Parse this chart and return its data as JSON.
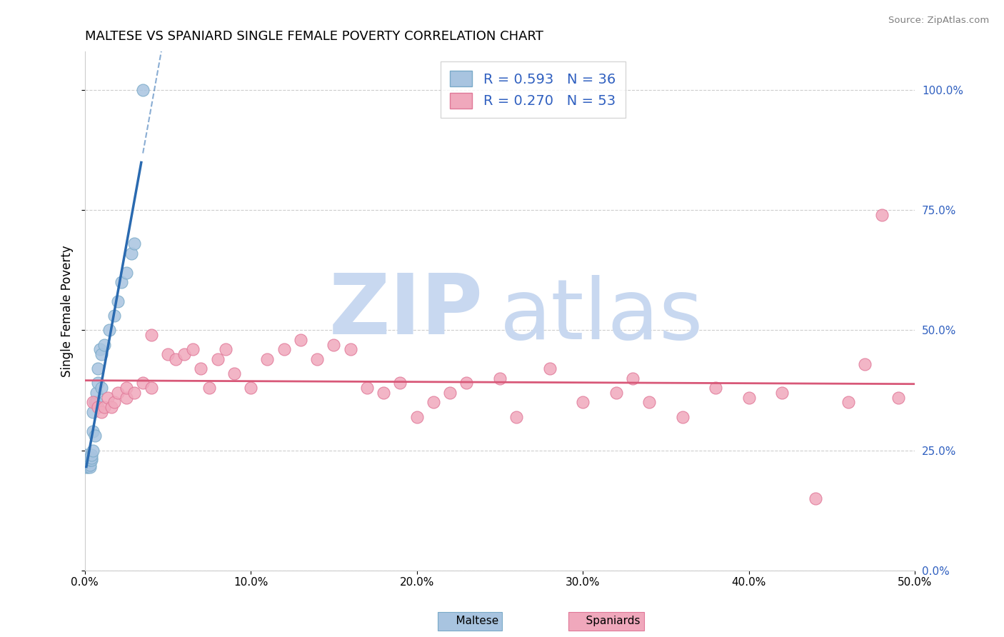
{
  "title": "MALTESE VS SPANIARD SINGLE FEMALE POVERTY CORRELATION CHART",
  "source": "Source: ZipAtlas.com",
  "ylabel": "Single Female Poverty",
  "xlim": [
    0.0,
    0.5
  ],
  "ylim": [
    0.0,
    1.08
  ],
  "xticks": [
    0.0,
    0.1,
    0.2,
    0.3,
    0.4,
    0.5
  ],
  "xticklabels": [
    "0.0%",
    "10.0%",
    "20.0%",
    "30.0%",
    "40.0%",
    "50.0%"
  ],
  "yticks": [
    0.0,
    0.25,
    0.5,
    0.75,
    1.0
  ],
  "yticklabels_right": [
    "0.0%",
    "25.0%",
    "50.0%",
    "75.0%",
    "100.0%"
  ],
  "maltese_color": "#a8c4e0",
  "maltese_edge": "#7aaac8",
  "spaniard_color": "#f0a8bc",
  "spaniard_edge": "#e07898",
  "blue_line_color": "#2a6ab0",
  "pink_line_color": "#d85878",
  "grid_color": "#c8c8c8",
  "watermark_zip": "ZIP",
  "watermark_atlas": "atlas",
  "watermark_color": "#c8d8f0",
  "legend_label1": "R = 0.593   N = 36",
  "legend_label2": "R = 0.270   N = 53",
  "legend_text_color": "#3060c0",
  "title_fontsize": 13,
  "maltese_x": [
    0.001,
    0.001,
    0.001,
    0.001,
    0.002,
    0.002,
    0.002,
    0.002,
    0.003,
    0.003,
    0.003,
    0.003,
    0.004,
    0.004,
    0.004,
    0.005,
    0.005,
    0.005,
    0.006,
    0.006,
    0.007,
    0.007,
    0.008,
    0.008,
    0.009,
    0.01,
    0.01,
    0.012,
    0.015,
    0.018,
    0.02,
    0.022,
    0.025,
    0.028,
    0.03,
    0.035
  ],
  "maltese_y": [
    0.215,
    0.225,
    0.23,
    0.24,
    0.215,
    0.22,
    0.225,
    0.23,
    0.215,
    0.22,
    0.23,
    0.235,
    0.23,
    0.235,
    0.24,
    0.25,
    0.29,
    0.33,
    0.28,
    0.35,
    0.35,
    0.37,
    0.39,
    0.42,
    0.46,
    0.38,
    0.45,
    0.47,
    0.5,
    0.53,
    0.56,
    0.6,
    0.62,
    0.66,
    0.68,
    1.0
  ],
  "spaniard_x": [
    0.005,
    0.008,
    0.01,
    0.012,
    0.014,
    0.016,
    0.018,
    0.02,
    0.025,
    0.025,
    0.03,
    0.035,
    0.04,
    0.04,
    0.05,
    0.055,
    0.06,
    0.065,
    0.07,
    0.075,
    0.08,
    0.085,
    0.09,
    0.1,
    0.11,
    0.12,
    0.13,
    0.14,
    0.15,
    0.16,
    0.17,
    0.18,
    0.19,
    0.2,
    0.21,
    0.22,
    0.23,
    0.25,
    0.26,
    0.28,
    0.3,
    0.32,
    0.33,
    0.34,
    0.36,
    0.38,
    0.4,
    0.42,
    0.44,
    0.46,
    0.47,
    0.48,
    0.49
  ],
  "spaniard_y": [
    0.35,
    0.34,
    0.33,
    0.34,
    0.36,
    0.34,
    0.35,
    0.37,
    0.36,
    0.38,
    0.37,
    0.39,
    0.38,
    0.49,
    0.45,
    0.44,
    0.45,
    0.46,
    0.42,
    0.38,
    0.44,
    0.46,
    0.41,
    0.38,
    0.44,
    0.46,
    0.48,
    0.44,
    0.47,
    0.46,
    0.38,
    0.37,
    0.39,
    0.32,
    0.35,
    0.37,
    0.39,
    0.4,
    0.32,
    0.42,
    0.35,
    0.37,
    0.4,
    0.35,
    0.32,
    0.38,
    0.36,
    0.37,
    0.15,
    0.35,
    0.43,
    0.74,
    0.36
  ]
}
